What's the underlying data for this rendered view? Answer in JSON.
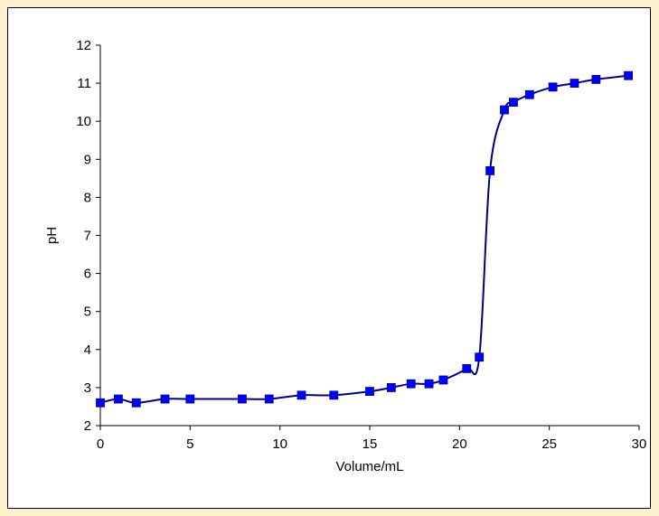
{
  "colors": {
    "background": "#fdf0cf",
    "plot_bg": "#ffffff",
    "series": "#000080",
    "marker": "#0000ff",
    "axis": "#000000"
  },
  "chart_data": {
    "type": "scatter",
    "xlabel": "Volume/mL",
    "ylabel": "pH",
    "xlim": [
      0,
      30
    ],
    "ylim": [
      2,
      12
    ],
    "x_ticks": [
      0,
      5,
      10,
      15,
      20,
      25,
      30
    ],
    "y_ticks": [
      2,
      3,
      4,
      5,
      6,
      7,
      8,
      9,
      10,
      11,
      12
    ],
    "grid": false,
    "legend": false,
    "series": [
      {
        "marker": "square",
        "line": "smooth",
        "x": [
          0,
          1,
          2,
          3.6,
          5,
          7.9,
          9.4,
          11.2,
          13,
          15,
          16.2,
          17.3,
          18.3,
          19.1,
          20.4,
          21.1,
          21.7,
          22.5,
          23,
          23.9,
          25.2,
          26.4,
          27.6,
          29.4
        ],
        "y": [
          2.6,
          2.7,
          2.6,
          2.7,
          2.7,
          2.7,
          2.7,
          2.8,
          2.8,
          2.9,
          3.0,
          3.1,
          3.1,
          3.2,
          3.5,
          3.8,
          8.7,
          10.3,
          10.5,
          10.7,
          10.9,
          11.0,
          11.1,
          11.2
        ]
      }
    ]
  }
}
